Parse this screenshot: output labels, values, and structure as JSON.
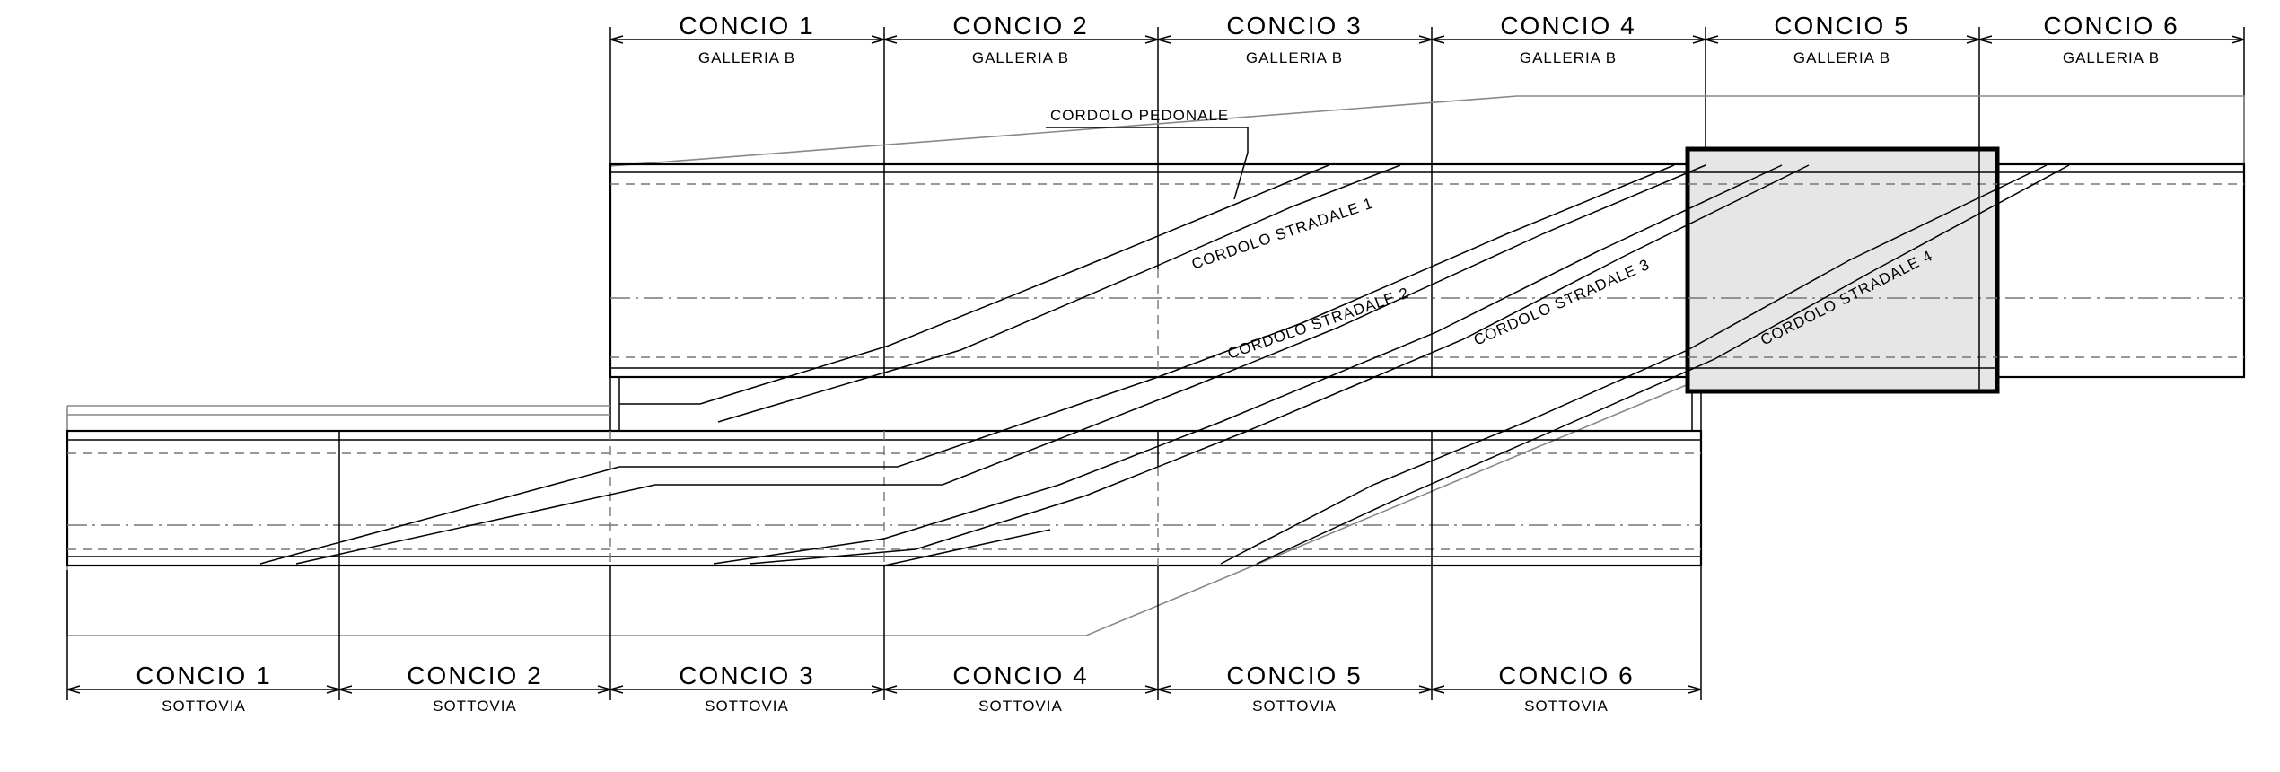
{
  "galleria": {
    "segments": [
      {
        "title": "CONCIO 1",
        "sub": "GALLERIA B"
      },
      {
        "title": "CONCIO 2",
        "sub": "GALLERIA B"
      },
      {
        "title": "CONCIO 3",
        "sub": "GALLERIA B"
      },
      {
        "title": "CONCIO 4",
        "sub": "GALLERIA B"
      },
      {
        "title": "CONCIO 5",
        "sub": "GALLERIA B"
      },
      {
        "title": "CONCIO 6",
        "sub": "GALLERIA B"
      }
    ]
  },
  "sottovia": {
    "segments": [
      {
        "title": "CONCIO 1",
        "sub": "SOTTOVIA"
      },
      {
        "title": "CONCIO 2",
        "sub": "SOTTOVIA"
      },
      {
        "title": "CONCIO 3",
        "sub": "SOTTOVIA"
      },
      {
        "title": "CONCIO 4",
        "sub": "SOTTOVIA"
      },
      {
        "title": "CONCIO 5",
        "sub": "SOTTOVIA"
      },
      {
        "title": "CONCIO 6",
        "sub": "SOTTOVIA"
      }
    ]
  },
  "labels": {
    "cordolo_pedonale": "CORDOLO PEDONALE",
    "cordolo_stradale_1": "CORDOLO STRADALE 1",
    "cordolo_stradale_2": "CORDOLO STRADALE 2",
    "cordolo_stradale_3": "CORDOLO STRADALE 3",
    "cordolo_stradale_4": "CORDOLO STRADALE 4"
  },
  "colors": {
    "highlight_fill": "#e6e6e6",
    "line": "#000000",
    "aux_line": "#777777"
  }
}
